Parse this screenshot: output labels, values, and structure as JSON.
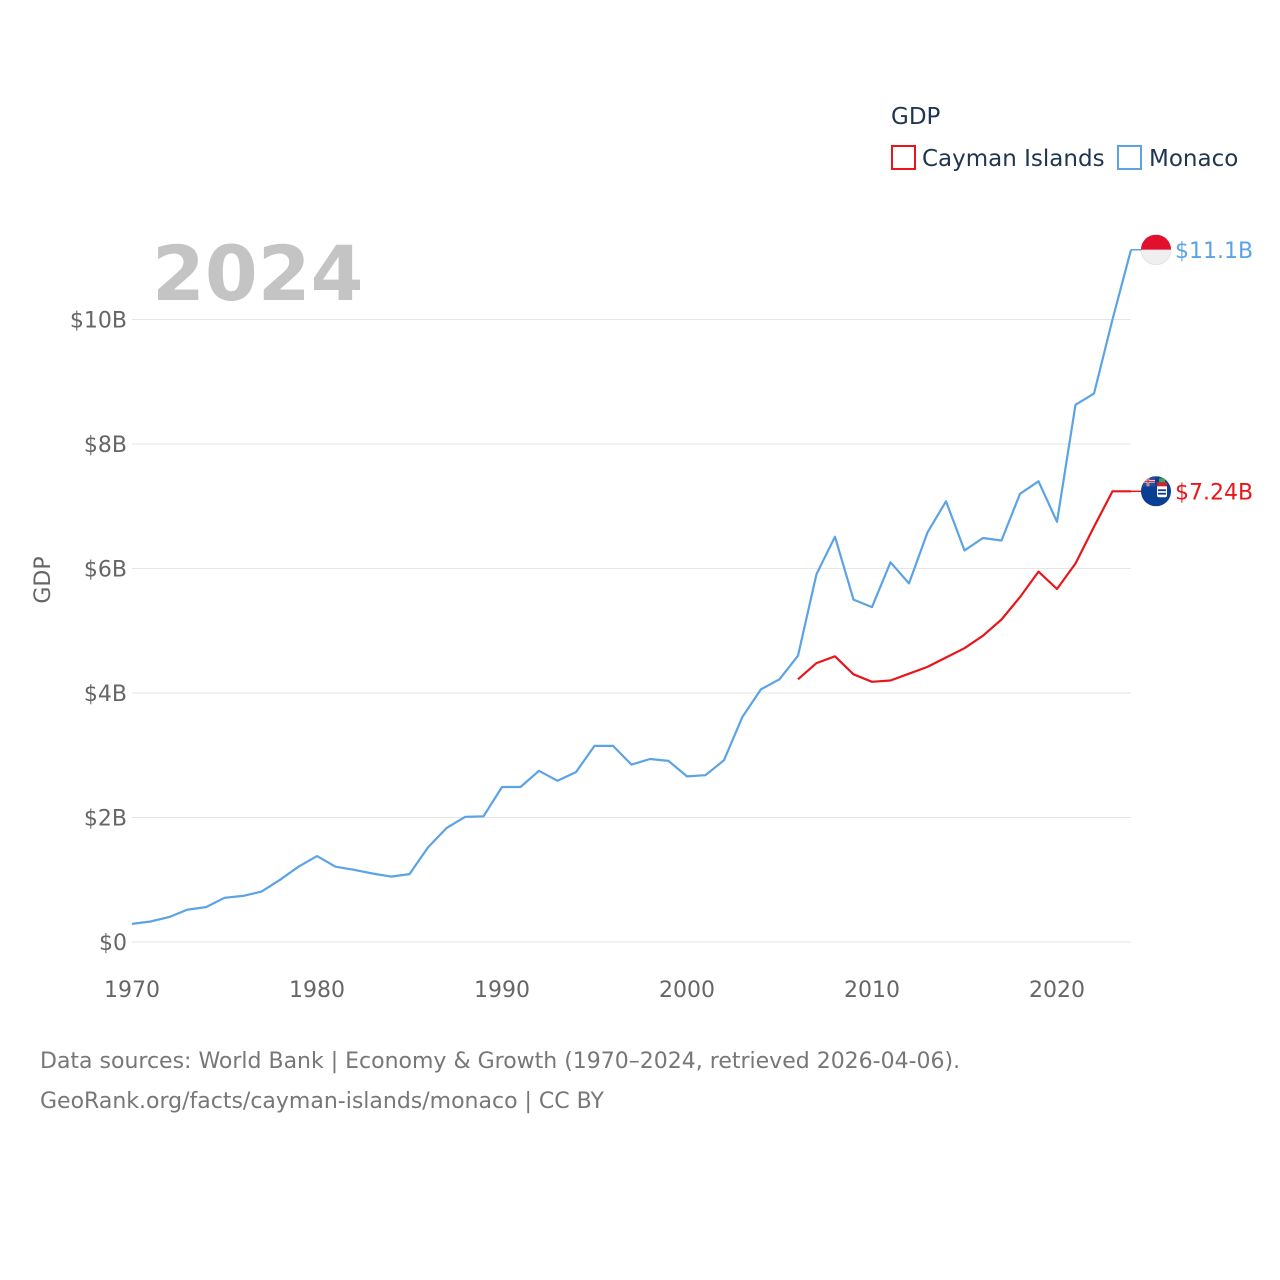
{
  "colors": {
    "cayman": "#e8161b",
    "monaco": "#5ba3e4",
    "grid": "#e6e6e6",
    "tick_text": "#666666",
    "watermark": "#c4c4c4"
  },
  "chart_data": {
    "type": "line",
    "title": "GDP",
    "ylabel": "GDP",
    "xlabel": "",
    "year_watermark": "2024",
    "xlim": [
      1970,
      2024
    ],
    "ylim": [
      0,
      12
    ],
    "x_ticks": [
      1970,
      1980,
      1990,
      2000,
      2010,
      2020
    ],
    "y_ticks": [
      {
        "value": 0,
        "label": "$0"
      },
      {
        "value": 2,
        "label": "$2B"
      },
      {
        "value": 4,
        "label": "$4B"
      },
      {
        "value": 6,
        "label": "$6B"
      },
      {
        "value": 8,
        "label": "$8B"
      },
      {
        "value": 10,
        "label": "$10B"
      }
    ],
    "grid": true,
    "legend": {
      "title": "GDP",
      "position": "top-right"
    },
    "series": [
      {
        "name": "Cayman Islands",
        "color_key": "cayman",
        "flag_icon": "cayman-islands-flag-icon",
        "end_label": "$7.24B",
        "x": [
          2006,
          2007,
          2008,
          2009,
          2010,
          2011,
          2012,
          2013,
          2014,
          2015,
          2016,
          2017,
          2018,
          2019,
          2020,
          2021,
          2022,
          2023,
          2024
        ],
        "values": [
          4.22,
          4.48,
          4.59,
          4.3,
          4.18,
          4.2,
          4.31,
          4.42,
          4.57,
          4.72,
          4.92,
          5.18,
          5.54,
          5.95,
          5.67,
          6.08,
          6.67,
          7.24,
          7.24
        ]
      },
      {
        "name": "Monaco",
        "color_key": "monaco",
        "flag_icon": "monaco-flag-icon",
        "end_label": "$11.1B",
        "x": [
          1970,
          1971,
          1972,
          1973,
          1974,
          1975,
          1976,
          1977,
          1978,
          1979,
          1980,
          1981,
          1982,
          1983,
          1984,
          1985,
          1986,
          1987,
          1988,
          1989,
          1990,
          1991,
          1992,
          1993,
          1994,
          1995,
          1996,
          1997,
          1998,
          1999,
          2000,
          2001,
          2002,
          2003,
          2004,
          2005,
          2006,
          2007,
          2008,
          2009,
          2010,
          2011,
          2012,
          2013,
          2014,
          2015,
          2016,
          2017,
          2018,
          2019,
          2020,
          2021,
          2022,
          2023,
          2024
        ],
        "values": [
          0.29,
          0.33,
          0.4,
          0.52,
          0.56,
          0.71,
          0.74,
          0.81,
          1.0,
          1.21,
          1.38,
          1.21,
          1.16,
          1.1,
          1.05,
          1.09,
          1.52,
          1.83,
          2.01,
          2.02,
          2.49,
          2.49,
          2.75,
          2.59,
          2.73,
          3.15,
          3.15,
          2.85,
          2.94,
          2.91,
          2.66,
          2.68,
          2.92,
          3.62,
          4.06,
          4.22,
          4.6,
          5.91,
          6.51,
          5.5,
          5.38,
          6.1,
          5.76,
          6.58,
          7.08,
          6.29,
          6.49,
          6.45,
          7.2,
          7.4,
          6.75,
          8.63,
          8.81,
          10.0,
          11.12
        ]
      }
    ]
  },
  "footer": {
    "line1": "Data sources: World Bank | Economy & Growth (1970–2024, retrieved 2026-04-06).",
    "line2": "GeoRank.org/facts/cayman-islands/monaco | CC BY"
  }
}
